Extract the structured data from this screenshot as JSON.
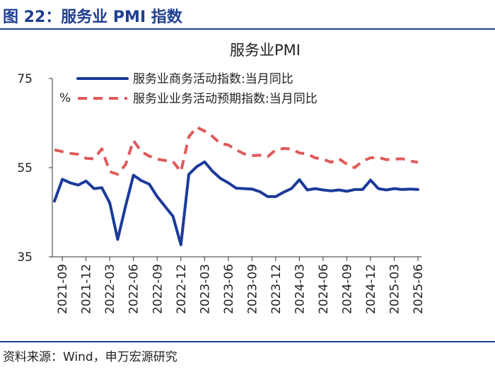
{
  "figure_title": "图 22：服务业 PMI 指数",
  "source": "资料来源：Wind，申万宏源研究",
  "chart_data": {
    "type": "line",
    "title": "服务业PMI",
    "y_unit": "%",
    "ylim": [
      35,
      75
    ],
    "yticks": [
      35,
      55,
      75
    ],
    "x_tick_labels": [
      "2021-09",
      "2021-12",
      "2022-03",
      "2022-06",
      "2022-09",
      "2022-12",
      "2023-03",
      "2023-06",
      "2023-09",
      "2023-12",
      "2024-03",
      "2024-06",
      "2024-09",
      "2024-12",
      "2025-03",
      "2025-06"
    ],
    "x": [
      "2021-08",
      "2021-09",
      "2021-10",
      "2021-11",
      "2021-12",
      "2022-01",
      "2022-02",
      "2022-03",
      "2022-04",
      "2022-05",
      "2022-06",
      "2022-07",
      "2022-08",
      "2022-09",
      "2022-10",
      "2022-11",
      "2022-12",
      "2023-01",
      "2023-02",
      "2023-03",
      "2023-04",
      "2023-05",
      "2023-06",
      "2023-07",
      "2023-08",
      "2023-09",
      "2023-10",
      "2023-11",
      "2023-12",
      "2024-01",
      "2024-02",
      "2024-03",
      "2024-04",
      "2024-05",
      "2024-06",
      "2024-07",
      "2024-08",
      "2024-09",
      "2024-10",
      "2024-11",
      "2024-12",
      "2025-01",
      "2025-02",
      "2025-03",
      "2025-04",
      "2025-05",
      "2025-06"
    ],
    "series": [
      {
        "name": "服务业商务活动指数:当月同比",
        "color": "#1b3b9a",
        "dash": "solid",
        "values": [
          47.5,
          52.4,
          51.6,
          51.1,
          52.0,
          50.3,
          50.5,
          47.1,
          38.9,
          46.4,
          53.3,
          52.1,
          51.3,
          48.5,
          46.3,
          44.1,
          37.7,
          53.5,
          55.2,
          56.3,
          54.2,
          52.6,
          51.6,
          50.4,
          50.3,
          50.2,
          49.6,
          48.5,
          48.5,
          49.5,
          50.3,
          52.3,
          50.0,
          50.3,
          50.0,
          49.8,
          50.0,
          49.7,
          50.1,
          50.1,
          52.2,
          50.3,
          50.0,
          50.3,
          50.1,
          50.2,
          50.1
        ]
      },
      {
        "name": "服务业业务活动预期指数:当月同比",
        "color": "#e05a5a",
        "dash": "dashed",
        "values": [
          59.0,
          58.6,
          58.2,
          58.0,
          57.1,
          57.0,
          59.2,
          54.1,
          53.5,
          55.7,
          61.1,
          58.6,
          57.6,
          56.9,
          56.6,
          56.4,
          54.1,
          61.9,
          64.1,
          63.2,
          62.0,
          60.4,
          60.1,
          59.0,
          58.1,
          57.7,
          57.8,
          57.5,
          59.0,
          59.3,
          59.2,
          58.3,
          58.1,
          57.2,
          56.9,
          56.2,
          57.0,
          55.8,
          55.0,
          56.5,
          57.2,
          57.3,
          56.8,
          56.9,
          57.0,
          56.5,
          56.2
        ]
      }
    ]
  }
}
